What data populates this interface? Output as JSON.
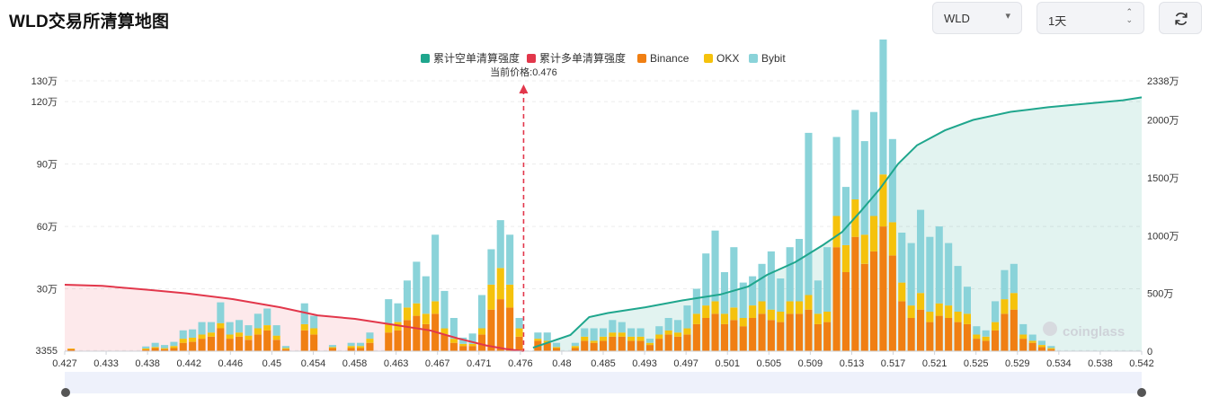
{
  "header": {
    "title": "WLD交易所清算地图",
    "symbol": "WLD",
    "period": "1天",
    "refresh_icon": "refresh-icon",
    "symbol_caret_icon": "caret-down-icon",
    "period_caret_icon": "up-down-caret-icon"
  },
  "watermark": "coinglass",
  "chart_data": {
    "type": "bar",
    "title": "",
    "current_price_label": "当前价格:0.476",
    "current_price": 0.476,
    "legend_position": "top-center",
    "legend": [
      {
        "name": "累计空单清算强度",
        "color": "#1fa68d"
      },
      {
        "name": "累计多单清算强度",
        "color": "#e2374b"
      },
      {
        "name": "Binance",
        "color": "#f07f13"
      },
      {
        "name": "OKX",
        "color": "#f5c20c"
      },
      {
        "name": "Bybit",
        "color": "#8ad3d9"
      }
    ],
    "x_ticks": [
      "0.427",
      "0.433",
      "0.438",
      "0.442",
      "0.446",
      "0.45",
      "0.454",
      "0.458",
      "0.463",
      "0.467",
      "0.471",
      "0.476",
      "0.48",
      "0.485",
      "0.493",
      "0.497",
      "0.501",
      "0.505",
      "0.509",
      "0.513",
      "0.517",
      "0.521",
      "0.525",
      "0.529",
      "0.534",
      "0.538",
      "0.542"
    ],
    "x_range": [
      0.427,
      0.542
    ],
    "y_left": {
      "ticks": [
        "3355",
        "30万",
        "60万",
        "90万",
        "120万",
        "130万"
      ],
      "values": [
        3355,
        300000,
        600000,
        900000,
        1200000,
        1300000
      ],
      "range": [
        0,
        1300000
      ]
    },
    "y_right": {
      "ticks": [
        "0",
        "500万",
        "1000万",
        "1500万",
        "2000万",
        "2338万"
      ],
      "values": [
        0,
        5000000,
        10000000,
        15000000,
        20000000,
        23380000
      ],
      "range": [
        0,
        23380000
      ]
    },
    "grid": true,
    "series": [
      {
        "name": "Binance",
        "values": [
          10000,
          0,
          0,
          0,
          0,
          0,
          0,
          0,
          8000,
          15000,
          10000,
          15000,
          40000,
          45000,
          60000,
          70000,
          110000,
          60000,
          70000,
          55000,
          80000,
          100000,
          55000,
          10000,
          0,
          100000,
          80000,
          0,
          15000,
          0,
          15000,
          15000,
          40000,
          0,
          90000,
          100000,
          150000,
          170000,
          130000,
          180000,
          80000,
          40000,
          25000,
          25000,
          80000,
          200000,
          250000,
          210000,
          70000,
          0,
          50000,
          40000,
          15000,
          0,
          15000,
          50000,
          40000,
          50000,
          70000,
          70000,
          50000,
          50000,
          30000,
          60000,
          80000,
          70000,
          80000,
          130000,
          160000,
          180000,
          130000,
          150000,
          120000,
          160000,
          180000,
          150000,
          140000,
          180000,
          180000,
          200000,
          130000,
          140000,
          500000,
          380000,
          550000,
          420000,
          480000,
          600000,
          460000,
          240000,
          160000,
          200000,
          140000,
          170000,
          160000,
          140000,
          130000,
          60000,
          50000,
          100000,
          180000,
          200000,
          60000,
          40000,
          20000,
          10000,
          0,
          0,
          0,
          0,
          0,
          0,
          0,
          0,
          0
        ],
        "colors": [
          "#f07f13"
        ]
      },
      {
        "name": "OKX",
        "values": [
          3000,
          0,
          0,
          0,
          0,
          0,
          0,
          0,
          5000,
          5000,
          5000,
          10000,
          20000,
          20000,
          20000,
          20000,
          25000,
          20000,
          20000,
          20000,
          30000,
          25000,
          20000,
          5000,
          0,
          30000,
          30000,
          0,
          5000,
          0,
          10000,
          10000,
          20000,
          0,
          40000,
          40000,
          60000,
          60000,
          50000,
          60000,
          30000,
          20000,
          10000,
          10000,
          30000,
          120000,
          150000,
          110000,
          40000,
          0,
          10000,
          10000,
          5000,
          0,
          10000,
          20000,
          10000,
          20000,
          20000,
          20000,
          20000,
          20000,
          10000,
          20000,
          20000,
          20000,
          30000,
          50000,
          60000,
          60000,
          50000,
          60000,
          40000,
          60000,
          60000,
          50000,
          50000,
          60000,
          60000,
          70000,
          50000,
          50000,
          150000,
          130000,
          180000,
          140000,
          170000,
          250000,
          160000,
          90000,
          60000,
          80000,
          50000,
          60000,
          60000,
          50000,
          50000,
          20000,
          20000,
          40000,
          70000,
          80000,
          20000,
          10000,
          10000,
          5000,
          0,
          0,
          0,
          0,
          0,
          0,
          0,
          0,
          0
        ],
        "colors": [
          "#f5c20c"
        ]
      },
      {
        "name": "Bybit",
        "values": [
          0,
          0,
          0,
          0,
          0,
          0,
          0,
          0,
          10000,
          20000,
          15000,
          20000,
          40000,
          40000,
          60000,
          50000,
          100000,
          60000,
          60000,
          50000,
          70000,
          80000,
          50000,
          10000,
          0,
          100000,
          60000,
          0,
          10000,
          0,
          15000,
          15000,
          30000,
          0,
          120000,
          90000,
          130000,
          200000,
          180000,
          320000,
          180000,
          100000,
          30000,
          50000,
          160000,
          170000,
          230000,
          240000,
          50000,
          0,
          30000,
          40000,
          20000,
          0,
          15000,
          40000,
          60000,
          40000,
          60000,
          50000,
          40000,
          40000,
          20000,
          40000,
          60000,
          60000,
          110000,
          120000,
          250000,
          340000,
          200000,
          290000,
          170000,
          140000,
          180000,
          280000,
          160000,
          260000,
          300000,
          780000,
          160000,
          310000,
          380000,
          280000,
          430000,
          450000,
          500000,
          700000,
          400000,
          240000,
          300000,
          400000,
          360000,
          370000,
          300000,
          220000,
          130000,
          40000,
          30000,
          100000,
          140000,
          140000,
          50000,
          30000,
          20000,
          10000,
          0,
          0,
          0,
          0,
          0,
          0,
          0,
          0,
          0
        ],
        "colors": [
          "#8ad3d9"
        ]
      },
      {
        "name": "累计多单清算强度",
        "type": "line",
        "axis": "right",
        "x": [
          0.427,
          0.431,
          0.436,
          0.44,
          0.445,
          0.45,
          0.454,
          0.458,
          0.462,
          0.466,
          0.469,
          0.472,
          0.474,
          0.476
        ],
        "values": [
          5750000,
          5650000,
          5300000,
          5000000,
          4500000,
          3800000,
          3100000,
          2800000,
          2300000,
          1800000,
          1100000,
          500000,
          200000,
          0
        ]
      },
      {
        "name": "累计空单清算强度",
        "type": "line",
        "axis": "right",
        "x": [
          0.477,
          0.481,
          0.483,
          0.485,
          0.489,
          0.493,
          0.497,
          0.5,
          0.502,
          0.505,
          0.508,
          0.51,
          0.512,
          0.514,
          0.516,
          0.518,
          0.521,
          0.524,
          0.528,
          0.532,
          0.536,
          0.54,
          0.542
        ],
        "values": [
          300000,
          1400000,
          2950000,
          3300000,
          3800000,
          4400000,
          4900000,
          5600000,
          6600000,
          7700000,
          9200000,
          10300000,
          12100000,
          14000000,
          16200000,
          17800000,
          19100000,
          20000000,
          20700000,
          21100000,
          21400000,
          21700000,
          21950000
        ]
      }
    ]
  }
}
